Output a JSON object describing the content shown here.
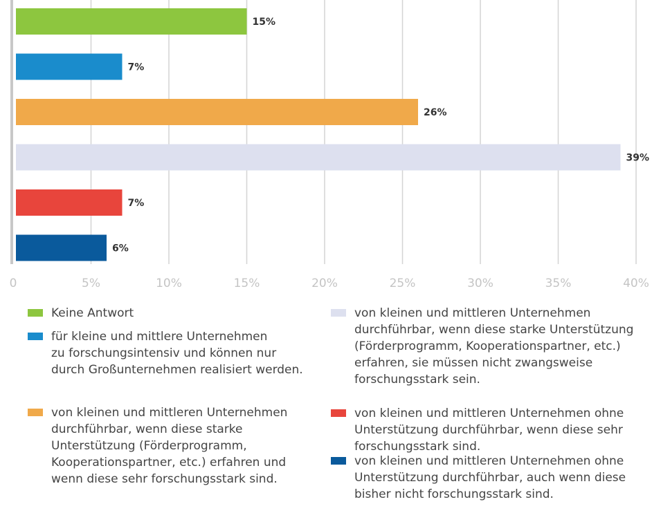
{
  "chart_data": {
    "type": "barh",
    "categories": [
      "Keine Antwort",
      "für kleine und mittlere Unternehmen\nzu forschungsintensiv und können nur\ndurch Großunternehmen realisiert werden.",
      "von kleinen und mittleren Unternehmen\ndurchführbar, wenn diese starke\nUnterstützung (Förderprogramm,\nKooperationspartner, etc.) erfahren und\nwenn diese sehr forschungsstark sind.",
      "von kleinen und mittleren Unternehmen\ndurchführbar, wenn diese starke Unterstützung\n(Förderprogramm, Kooperationspartner, etc.)\nerfahren, sie müssen nicht zwangsweise\nforschungsstark sein.",
      "von kleinen und mittleren Unternehmen ohne\nUnterstützung durchführbar, wenn diese sehr\nforschungsstark sind.",
      "von kleinen und mittleren Unternehmen ohne\nUnterstützung durchführbar, auch wenn diese\nbisher nicht forschungsstark sind."
    ],
    "values": [
      15,
      7,
      26,
      39,
      7,
      6
    ],
    "value_labels": [
      "15%",
      "7%",
      "26%",
      "39%",
      "7%",
      "6%"
    ],
    "colors": [
      "#8dc63f",
      "#1a8ccc",
      "#f0a94a",
      "#dde0ef",
      "#e8453c",
      "#0a5a9c"
    ],
    "xlim": [
      0,
      40
    ],
    "xticks": [
      0,
      {
        "value": 5,
        "label": "5%"
      },
      {
        "value": 10,
        "label": "10%"
      },
      {
        "value": 15,
        "label": "15%"
      },
      {
        "value": 20,
        "label": "20%"
      },
      {
        "value": 25,
        "label": "25%"
      },
      {
        "value": 30,
        "label": "30%"
      },
      {
        "value": 35,
        "label": "35%"
      },
      {
        "value": 40,
        "label": "40%"
      }
    ],
    "grid": true
  }
}
